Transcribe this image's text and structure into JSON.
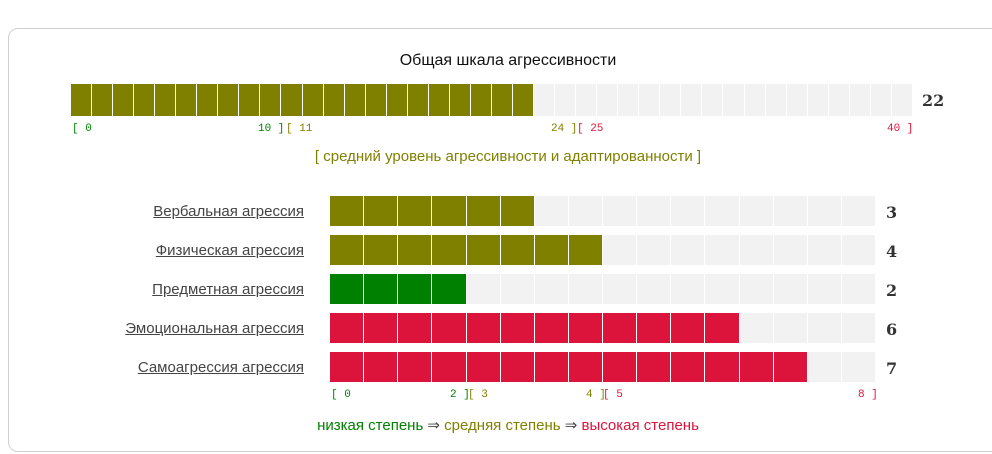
{
  "title": "Общая шкала агрессивности",
  "colors": {
    "low": "#008000",
    "medium": "#808000",
    "high": "#dc143c",
    "empty": "#f2f2f2"
  },
  "total": {
    "value": 22,
    "value_text": "22",
    "max": 40,
    "color": "#808000",
    "ticks": [
      {
        "text": "[ 0",
        "color": "#008000"
      },
      {
        "text": "10 ]",
        "color": "#008000"
      },
      {
        "text": "[ 11",
        "color": "#808000"
      },
      {
        "text": "24 ]",
        "color": "#808000"
      },
      {
        "text": "[ 25",
        "color": "#dc143c"
      },
      {
        "text": "40 ]",
        "color": "#dc143c"
      }
    ],
    "level_text": "[ средний уровень агрессивности и адаптированности ]",
    "level_color": "#808000"
  },
  "rows_max": 8,
  "rows": [
    {
      "label": "Вербальная агрессия",
      "value": 3,
      "value_text": "3",
      "color": "#808000"
    },
    {
      "label": "Физическая агрессия",
      "value": 4,
      "value_text": "4",
      "color": "#808000"
    },
    {
      "label": "Предметная агрессия",
      "value": 2,
      "value_text": "2",
      "color": "#008000"
    },
    {
      "label": "Эмоциональная агрессия",
      "value": 6,
      "value_text": "6",
      "color": "#dc143c"
    },
    {
      "label": "Самоагрессия агрессия",
      "value": 7,
      "value_text": "7",
      "color": "#dc143c"
    }
  ],
  "rows_ticks": [
    {
      "text": "[ 0",
      "color": "#008000"
    },
    {
      "text": "2 ]",
      "color": "#008000"
    },
    {
      "text": "[ 3",
      "color": "#808000"
    },
    {
      "text": "4 ]",
      "color": "#808000"
    },
    {
      "text": "[ 5",
      "color": "#dc143c"
    },
    {
      "text": "8 ]",
      "color": "#dc143c"
    }
  ],
  "legend": {
    "low": "низкая степень",
    "arrow": " ⇒ ",
    "medium": "средняя степень",
    "high": "высокая степень"
  }
}
